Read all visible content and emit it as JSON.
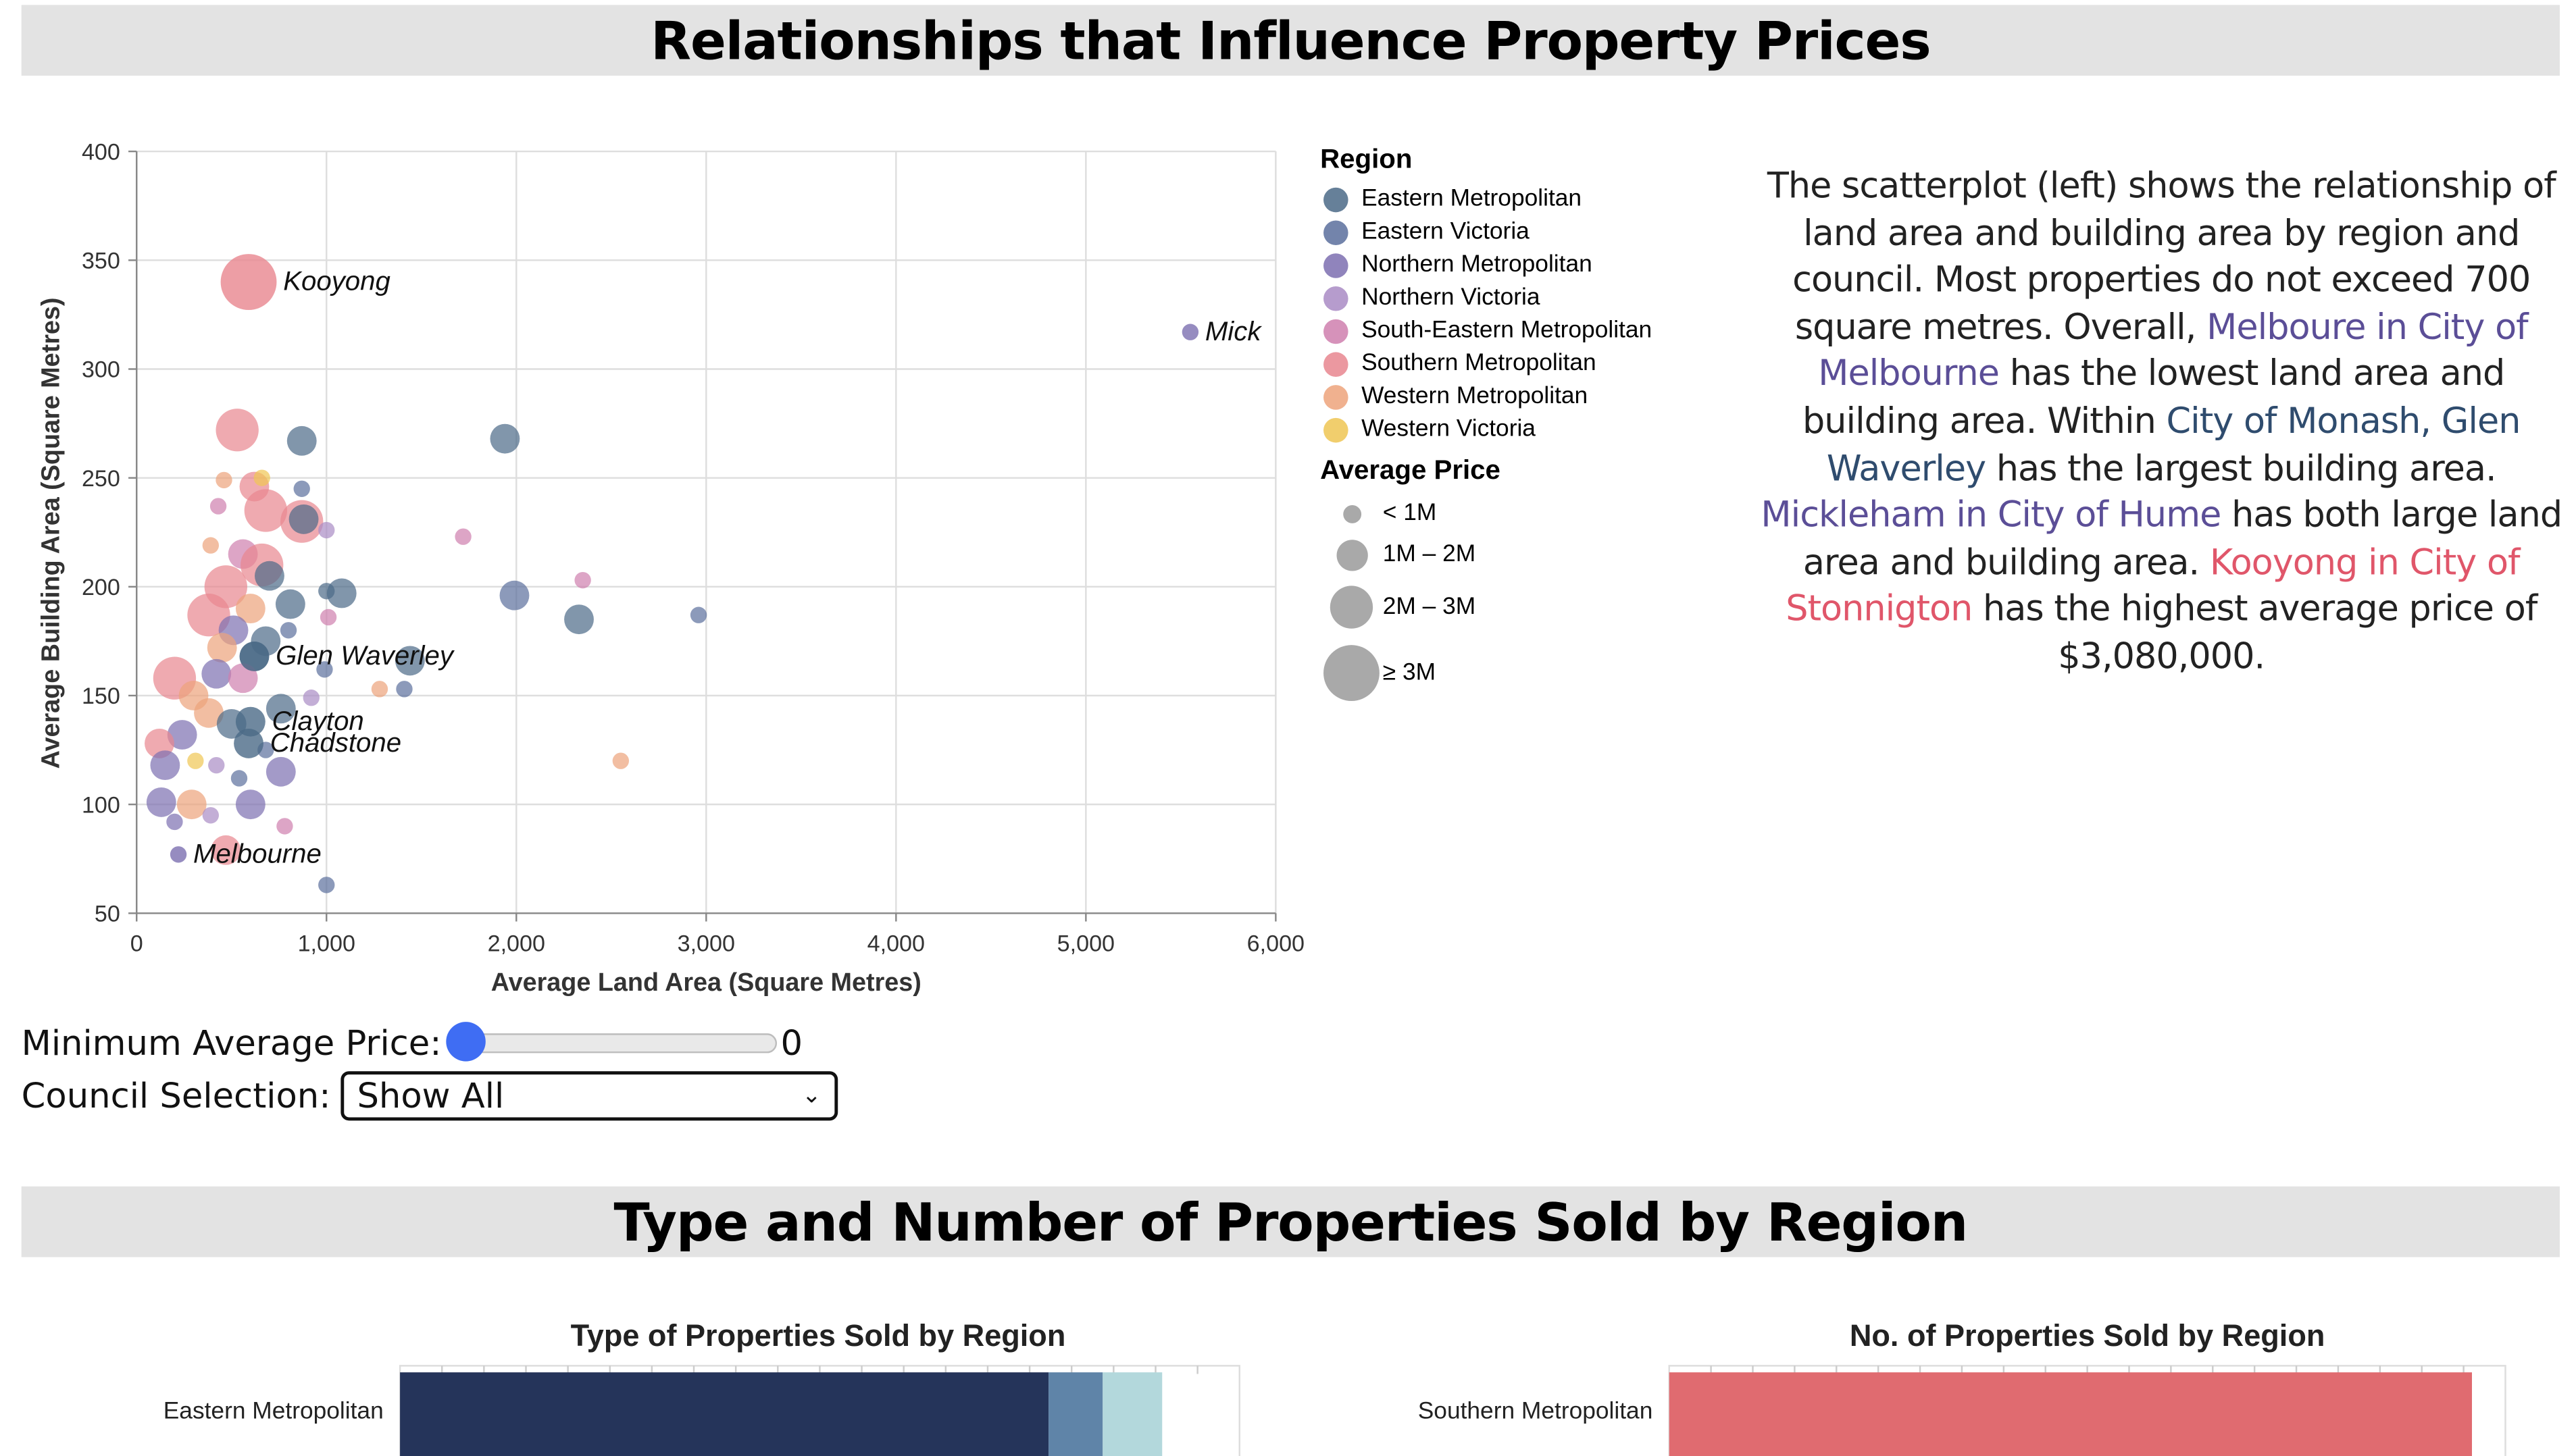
{
  "titles": {
    "main": "Relationships that Influence Property Prices",
    "second": "Type and Number of Properties Sold by Region"
  },
  "legend": {
    "region_title": "Region",
    "regions": [
      {
        "name": "Eastern Metropolitan",
        "color": "#4b6a87"
      },
      {
        "name": "Eastern Victoria",
        "color": "#5b6f9c"
      },
      {
        "name": "Northern Metropolitan",
        "color": "#7c6fb0"
      },
      {
        "name": "Northern Victoria",
        "color": "#a98bc4"
      },
      {
        "name": "South-Eastern Metropolitan",
        "color": "#cf7fae"
      },
      {
        "name": "Southern Metropolitan",
        "color": "#e8868f"
      },
      {
        "name": "Western Metropolitan",
        "color": "#eda37b"
      },
      {
        "name": "Western Victoria",
        "color": "#efc653"
      }
    ],
    "size_title": "Average Price",
    "sizes": [
      "< 1M",
      "1M – 2M",
      "2M – 3M",
      "≥ 3M"
    ]
  },
  "description": {
    "p1": "The scatterplot (left) shows the relationship of land area and building area by region and council. Most properties do not exceed 700 square metres. Overall, ",
    "hl1": "Melboure in City of Melbourne",
    "p2": " has the lowest land area and building area. Within ",
    "hl2": "City of Monash, Glen Waverley",
    "p3": " has the largest building area. ",
    "hl3": "Mickleham in City of Hume",
    "p4": " has both large land area and building area. ",
    "hl4": "Kooyong in City of Stonnigton",
    "p5": " has the highest average price of $3,080,000."
  },
  "controls": {
    "price_label": "Minimum Average Price:",
    "price_value": "0",
    "price_fraction": 0,
    "council_label": "Council Selection:",
    "council_value": "Show All"
  },
  "chart_data": [
    {
      "type": "scatter",
      "xlabel": "Average Land Area (Square Metres)",
      "ylabel": "Average Building Area (Square Metres)",
      "xlim": [
        0,
        6000
      ],
      "ylim": [
        50,
        400
      ],
      "xticks": [
        0,
        1000,
        2000,
        3000,
        4000,
        5000,
        6000
      ],
      "xtick_labels": [
        "0",
        "1,000",
        "2,000",
        "3,000",
        "4,000",
        "5,000",
        "6,000"
      ],
      "yticks": [
        50,
        100,
        150,
        200,
        250,
        300,
        350,
        400
      ],
      "grid": true,
      "legend_position": "right",
      "labeled_points": [
        {
          "label": "Kooyong",
          "x": 590,
          "y": 340,
          "region": "Southern Metropolitan",
          "price": "≥ 3M"
        },
        {
          "label": "Mick",
          "x": 5550,
          "y": 317,
          "region": "Northern Metropolitan",
          "price": "< 1M"
        },
        {
          "label": "Glen Waverley",
          "x": 620,
          "y": 168,
          "region": "Eastern Metropolitan",
          "price": "1M – 2M"
        },
        {
          "label": "Clayton",
          "x": 600,
          "y": 138,
          "region": "Eastern Metropolitan",
          "price": "1M – 2M"
        },
        {
          "label": "Chadstone",
          "x": 590,
          "y": 128,
          "region": "Eastern Metropolitan",
          "price": "1M – 2M"
        },
        {
          "label": "Melbourne",
          "x": 220,
          "y": 77,
          "region": "Northern Metropolitan",
          "price": "< 1M"
        }
      ],
      "points": [
        {
          "x": 530,
          "y": 272,
          "r": "Southern Metropolitan",
          "s": 3
        },
        {
          "x": 870,
          "y": 267,
          "r": "Eastern Metropolitan",
          "s": 2
        },
        {
          "x": 1940,
          "y": 268,
          "r": "Eastern Metropolitan",
          "s": 2
        },
        {
          "x": 460,
          "y": 249,
          "r": "Western Metropolitan",
          "s": 1
        },
        {
          "x": 620,
          "y": 246,
          "r": "Southern Metropolitan",
          "s": 2
        },
        {
          "x": 660,
          "y": 250,
          "r": "Western Victoria",
          "s": 1
        },
        {
          "x": 870,
          "y": 245,
          "r": "Eastern Victoria",
          "s": 1
        },
        {
          "x": 430,
          "y": 237,
          "r": "South-Eastern Metropolitan",
          "s": 1
        },
        {
          "x": 680,
          "y": 235,
          "r": "Southern Metropolitan",
          "s": 3
        },
        {
          "x": 870,
          "y": 230,
          "r": "Southern Metropolitan",
          "s": 3
        },
        {
          "x": 880,
          "y": 231,
          "r": "Eastern Metropolitan",
          "s": 2
        },
        {
          "x": 1000,
          "y": 226,
          "r": "Northern Victoria",
          "s": 1
        },
        {
          "x": 1720,
          "y": 223,
          "r": "South-Eastern Metropolitan",
          "s": 1
        },
        {
          "x": 390,
          "y": 219,
          "r": "Western Metropolitan",
          "s": 1
        },
        {
          "x": 560,
          "y": 215,
          "r": "South-Eastern Metropolitan",
          "s": 2
        },
        {
          "x": 660,
          "y": 210,
          "r": "Southern Metropolitan",
          "s": 3
        },
        {
          "x": 700,
          "y": 205,
          "r": "Eastern Metropolitan",
          "s": 2
        },
        {
          "x": 470,
          "y": 200,
          "r": "Southern Metropolitan",
          "s": 3
        },
        {
          "x": 1000,
          "y": 198,
          "r": "Eastern Metropolitan",
          "s": 1
        },
        {
          "x": 1080,
          "y": 197,
          "r": "Eastern Metropolitan",
          "s": 2
        },
        {
          "x": 1990,
          "y": 196,
          "r": "Eastern Victoria",
          "s": 2
        },
        {
          "x": 2350,
          "y": 203,
          "r": "South-Eastern Metropolitan",
          "s": 1
        },
        {
          "x": 810,
          "y": 192,
          "r": "Eastern Metropolitan",
          "s": 2
        },
        {
          "x": 380,
          "y": 187,
          "r": "Southern Metropolitan",
          "s": 3
        },
        {
          "x": 600,
          "y": 190,
          "r": "Western Metropolitan",
          "s": 2
        },
        {
          "x": 1010,
          "y": 186,
          "r": "South-Eastern Metropolitan",
          "s": 1
        },
        {
          "x": 2330,
          "y": 185,
          "r": "Eastern Metropolitan",
          "s": 2
        },
        {
          "x": 2960,
          "y": 187,
          "r": "Eastern Victoria",
          "s": 1
        },
        {
          "x": 510,
          "y": 180,
          "r": "Northern Metropolitan",
          "s": 2
        },
        {
          "x": 800,
          "y": 180,
          "r": "Eastern Victoria",
          "s": 1
        },
        {
          "x": 680,
          "y": 175,
          "r": "Eastern Metropolitan",
          "s": 2
        },
        {
          "x": 450,
          "y": 172,
          "r": "Western Metropolitan",
          "s": 2
        },
        {
          "x": 620,
          "y": 168,
          "r": "Eastern Metropolitan",
          "s": 2
        },
        {
          "x": 1440,
          "y": 166,
          "r": "Eastern Metropolitan",
          "s": 2
        },
        {
          "x": 990,
          "y": 162,
          "r": "Eastern Victoria",
          "s": 1
        },
        {
          "x": 200,
          "y": 158,
          "r": "Southern Metropolitan",
          "s": 3
        },
        {
          "x": 420,
          "y": 160,
          "r": "Northern Metropolitan",
          "s": 2
        },
        {
          "x": 560,
          "y": 158,
          "r": "South-Eastern Metropolitan",
          "s": 2
        },
        {
          "x": 1280,
          "y": 153,
          "r": "Western Metropolitan",
          "s": 1
        },
        {
          "x": 1410,
          "y": 153,
          "r": "Eastern Victoria",
          "s": 1
        },
        {
          "x": 300,
          "y": 150,
          "r": "Western Metropolitan",
          "s": 2
        },
        {
          "x": 920,
          "y": 149,
          "r": "Northern Victoria",
          "s": 1
        },
        {
          "x": 760,
          "y": 144,
          "r": "Eastern Metropolitan",
          "s": 2
        },
        {
          "x": 380,
          "y": 142,
          "r": "Western Metropolitan",
          "s": 2
        },
        {
          "x": 500,
          "y": 137,
          "r": "Eastern Metropolitan",
          "s": 2
        },
        {
          "x": 240,
          "y": 132,
          "r": "Northern Metropolitan",
          "s": 2
        },
        {
          "x": 120,
          "y": 128,
          "r": "Southern Metropolitan",
          "s": 2
        },
        {
          "x": 680,
          "y": 125,
          "r": "Eastern Victoria",
          "s": 1
        },
        {
          "x": 150,
          "y": 118,
          "r": "Northern Metropolitan",
          "s": 2
        },
        {
          "x": 310,
          "y": 120,
          "r": "Western Victoria",
          "s": 1
        },
        {
          "x": 420,
          "y": 118,
          "r": "Northern Victoria",
          "s": 1
        },
        {
          "x": 760,
          "y": 115,
          "r": "Northern Metropolitan",
          "s": 2
        },
        {
          "x": 2550,
          "y": 120,
          "r": "Western Metropolitan",
          "s": 1
        },
        {
          "x": 540,
          "y": 112,
          "r": "Eastern Victoria",
          "s": 1
        },
        {
          "x": 130,
          "y": 101,
          "r": "Northern Metropolitan",
          "s": 2
        },
        {
          "x": 290,
          "y": 100,
          "r": "Western Metropolitan",
          "s": 2
        },
        {
          "x": 600,
          "y": 100,
          "r": "Northern Metropolitan",
          "s": 2
        },
        {
          "x": 390,
          "y": 95,
          "r": "Northern Victoria",
          "s": 1
        },
        {
          "x": 200,
          "y": 92,
          "r": "Northern Metropolitan",
          "s": 1
        },
        {
          "x": 780,
          "y": 90,
          "r": "South-Eastern Metropolitan",
          "s": 1
        },
        {
          "x": 470,
          "y": 79,
          "r": "Southern Metropolitan",
          "s": 2
        },
        {
          "x": 1000,
          "y": 63,
          "r": "Eastern Victoria",
          "s": 1
        }
      ]
    },
    {
      "type": "bar",
      "title": "Type of Properties Sold by Region",
      "categories": [
        "Eastern Metropolitan"
      ],
      "stacked_segments": [
        {
          "values": [
            0.851
          ],
          "color": "#25345a"
        },
        {
          "values": [
            0.071
          ],
          "color": "#5f84a8"
        },
        {
          "values": [
            0.078
          ],
          "color": "#b3d8dc"
        }
      ]
    },
    {
      "type": "bar",
      "title": "No. of Properties Sold by Region",
      "categories": [
        "Southern Metropolitan"
      ],
      "values": [
        0.96
      ],
      "color": "#e06b70"
    }
  ]
}
